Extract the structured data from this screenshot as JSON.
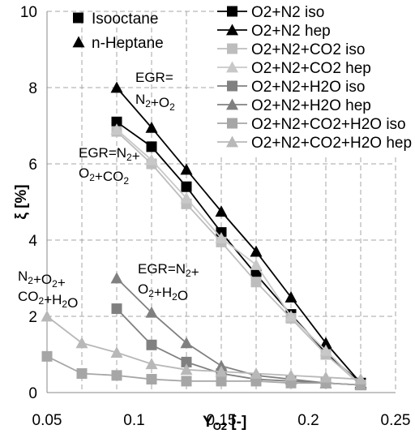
{
  "chart_data": {
    "type": "line",
    "xlabel_main": "Y",
    "xlabel_sub": "O2",
    "xlabel_unit": " [-]",
    "ylabel": "ξ [%]",
    "xlim": [
      0.05,
      0.25
    ],
    "ylim": [
      0,
      10
    ],
    "xticks": [
      0.05,
      0.1,
      0.15,
      0.2,
      0.25
    ],
    "xtick_labels": [
      "0.05",
      "0.1",
      "0.15",
      "0.2",
      "0.25"
    ],
    "yticks": [
      0,
      2,
      4,
      6,
      8,
      10
    ],
    "ytick_labels": [
      "0",
      "2",
      "4",
      "6",
      "8",
      "10"
    ],
    "grid": true,
    "marker_legend": [
      {
        "label": "Isooctane",
        "marker": "square"
      },
      {
        "label": "n-Heptane",
        "marker": "triangle"
      }
    ],
    "legend_position": "top-right",
    "series": [
      {
        "name": "O2+N2 iso",
        "color": "#000000",
        "marker": "square",
        "x": [
          0.09,
          0.11,
          0.13,
          0.15,
          0.17,
          0.19,
          0.21,
          0.23
        ],
        "y": [
          7.1,
          6.45,
          5.4,
          4.2,
          3.1,
          2.05,
          1.05,
          0.25
        ]
      },
      {
        "name": "O2+N2 hep",
        "color": "#000000",
        "marker": "triangle",
        "x": [
          0.09,
          0.11,
          0.13,
          0.15,
          0.17,
          0.19,
          0.21,
          0.23
        ],
        "y": [
          8.0,
          6.95,
          5.85,
          4.75,
          3.7,
          2.5,
          1.3,
          0.25
        ]
      },
      {
        "name": "O2+N2+CO2 iso",
        "color": "#bdbdbd",
        "marker": "square",
        "x": [
          0.09,
          0.11,
          0.13,
          0.15,
          0.17,
          0.19,
          0.21,
          0.23
        ],
        "y": [
          6.85,
          6.0,
          4.95,
          3.95,
          2.9,
          1.95,
          1.0,
          0.2
        ]
      },
      {
        "name": "O2+N2+CO2 hep",
        "color": "#c8c8c8",
        "marker": "triangle",
        "x": [
          0.09,
          0.11,
          0.13,
          0.15,
          0.17,
          0.19,
          0.21,
          0.23
        ],
        "y": [
          6.9,
          6.1,
          5.1,
          4.05,
          3.35,
          2.0,
          1.1,
          0.2
        ]
      },
      {
        "name": "O2+N2+H2O iso",
        "color": "#808080",
        "marker": "square",
        "x": [
          0.09,
          0.11,
          0.13,
          0.15,
          0.17,
          0.19,
          0.21,
          0.23
        ],
        "y": [
          2.2,
          1.25,
          0.8,
          0.5,
          0.35,
          0.3,
          0.25,
          0.2
        ]
      },
      {
        "name": "O2+N2+H2O hep",
        "color": "#808080",
        "marker": "triangle",
        "x": [
          0.09,
          0.11,
          0.13,
          0.15,
          0.17,
          0.19,
          0.21,
          0.23
        ],
        "y": [
          3.0,
          2.1,
          1.3,
          0.7,
          0.45,
          0.35,
          0.25,
          0.2
        ]
      },
      {
        "name": "O2+N2+CO2+H2O iso",
        "color": "#a6a6a6",
        "marker": "square",
        "x": [
          0.05,
          0.07,
          0.09,
          0.11,
          0.13,
          0.15,
          0.17,
          0.19,
          0.21,
          0.23
        ],
        "y": [
          0.95,
          0.5,
          0.45,
          0.35,
          0.3,
          0.3,
          0.3,
          0.25,
          0.25,
          0.2
        ]
      },
      {
        "name": "O2+N2+CO2+H2O hep",
        "color": "#b8b8b8",
        "marker": "triangle",
        "x": [
          0.05,
          0.07,
          0.09,
          0.11,
          0.13,
          0.15,
          0.17,
          0.19,
          0.21,
          0.23
        ],
        "y": [
          2.0,
          1.3,
          1.05,
          0.75,
          0.6,
          0.55,
          0.5,
          0.45,
          0.4,
          0.35
        ]
      }
    ],
    "annotations": [
      {
        "id": "a1",
        "lines": [
          [
            {
              "t": "EGR="
            }
          ],
          [
            {
              "t": "N"
            },
            {
              "t": "2",
              "sub": true
            },
            {
              "t": "+O"
            },
            {
              "t": "2",
              "sub": true
            }
          ]
        ]
      },
      {
        "id": "a2",
        "lines": [
          [
            {
              "t": "EGR=N"
            },
            {
              "t": "2",
              "sub": true
            },
            {
              "t": "+"
            }
          ],
          [
            {
              "t": "O"
            },
            {
              "t": "2",
              "sub": true
            },
            {
              "t": "+CO"
            },
            {
              "t": "2",
              "sub": true
            }
          ]
        ]
      },
      {
        "id": "a3",
        "lines": [
          [
            {
              "t": "EGR=N"
            },
            {
              "t": "2",
              "sub": true
            },
            {
              "t": "+"
            }
          ],
          [
            {
              "t": "O"
            },
            {
              "t": "2",
              "sub": true
            },
            {
              "t": "+H"
            },
            {
              "t": "2",
              "sub": true
            },
            {
              "t": "O"
            }
          ]
        ]
      },
      {
        "id": "a4",
        "lines": [
          [
            {
              "t": "N"
            },
            {
              "t": "2",
              "sub": true
            },
            {
              "t": "+O"
            },
            {
              "t": "2",
              "sub": true
            },
            {
              "t": "+"
            }
          ],
          [
            {
              "t": "CO"
            },
            {
              "t": "2",
              "sub": true
            },
            {
              "t": "+H"
            },
            {
              "t": "2",
              "sub": true
            },
            {
              "t": "O"
            }
          ]
        ]
      }
    ]
  }
}
